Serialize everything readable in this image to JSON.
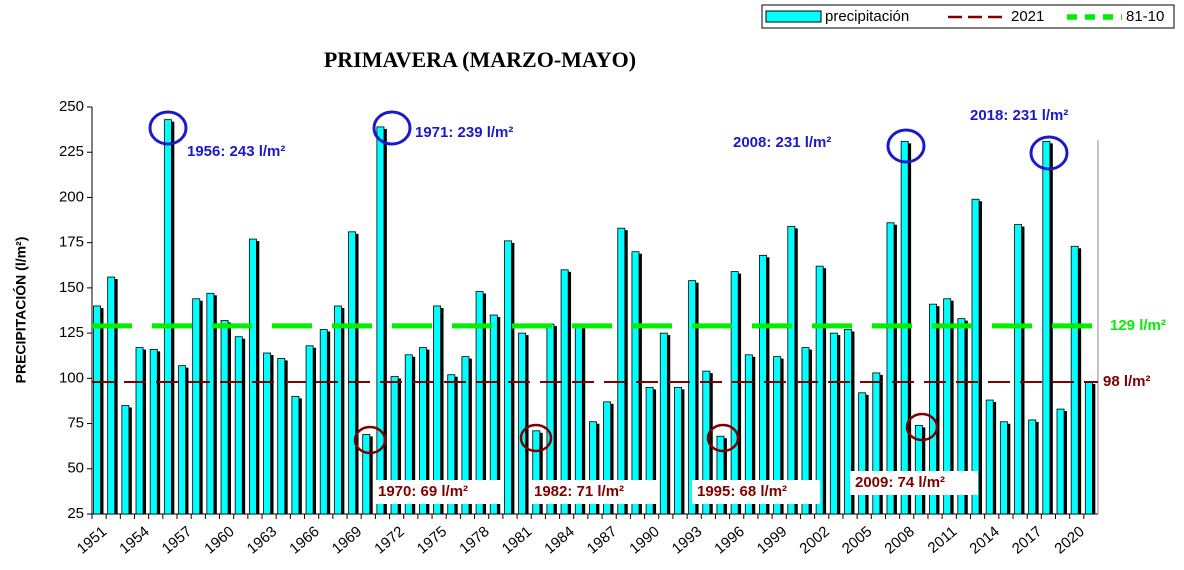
{
  "chart_data": {
    "type": "bar",
    "title": "PRIMAVERA (MARZO-MAYO)",
    "y_label": "PRECIPITACIÓN (l/m²)",
    "categories": [
      "1951",
      null,
      null,
      "1954",
      null,
      null,
      "1957",
      null,
      null,
      "1960",
      null,
      null,
      "1963",
      null,
      null,
      "1966",
      null,
      null,
      "1969",
      null,
      null,
      "1972",
      null,
      null,
      "1975",
      null,
      null,
      "1978",
      null,
      null,
      "1981",
      null,
      null,
      "1984",
      null,
      null,
      "1987",
      null,
      null,
      "1990",
      null,
      null,
      "1993",
      null,
      null,
      "1996",
      null,
      null,
      "1999",
      null,
      null,
      "2002",
      null,
      null,
      "2005",
      null,
      null,
      "2008",
      null,
      null,
      "2011",
      null,
      null,
      "2014",
      null,
      null,
      "2017",
      null,
      null,
      "2020",
      null
    ],
    "series": [
      {
        "name": "precipitación",
        "color": "#00ffff",
        "values": [
          140,
          156,
          85,
          117,
          116,
          243,
          107,
          144,
          147,
          132,
          123,
          177,
          114,
          111,
          90,
          118,
          127,
          140,
          181,
          69,
          239,
          101,
          113,
          117,
          140,
          102,
          112,
          148,
          135,
          176,
          125,
          71,
          130,
          160,
          130,
          76,
          87,
          183,
          170,
          95,
          125,
          95,
          154,
          104,
          68,
          159,
          113,
          168,
          112,
          184,
          117,
          162,
          125,
          127,
          92,
          103,
          186,
          231,
          74,
          141,
          144,
          133,
          199,
          88,
          76,
          185,
          77,
          231,
          83,
          173,
          98
        ]
      }
    ],
    "reference_lines": [
      {
        "name": "2021",
        "value": 98,
        "color": "#800000",
        "label": "98 l/m²"
      },
      {
        "name": "81-10",
        "value": 129,
        "color": "#00ee00",
        "label": "129 l/m²"
      }
    ],
    "annotations": [
      {
        "text": "1956: 243 l/m²",
        "color": "#1a1acc"
      },
      {
        "text": "1971: 239 l/m²",
        "color": "#1a1acc"
      },
      {
        "text": "2008: 231 l/m²",
        "color": "#1a1acc"
      },
      {
        "text": "2018: 231 l/m²",
        "color": "#1a1acc"
      },
      {
        "text": "1970: 69 l/m²",
        "color": "#800000"
      },
      {
        "text": "1982: 71 l/m²",
        "color": "#800000"
      },
      {
        "text": "1995: 68 l/m²",
        "color": "#800000"
      },
      {
        "text": "2009: 74 l/m²",
        "color": "#800000"
      }
    ],
    "ylim": [
      25,
      250
    ],
    "yticks": [
      25,
      50,
      75,
      100,
      125,
      150,
      175,
      200,
      225,
      250
    ]
  }
}
